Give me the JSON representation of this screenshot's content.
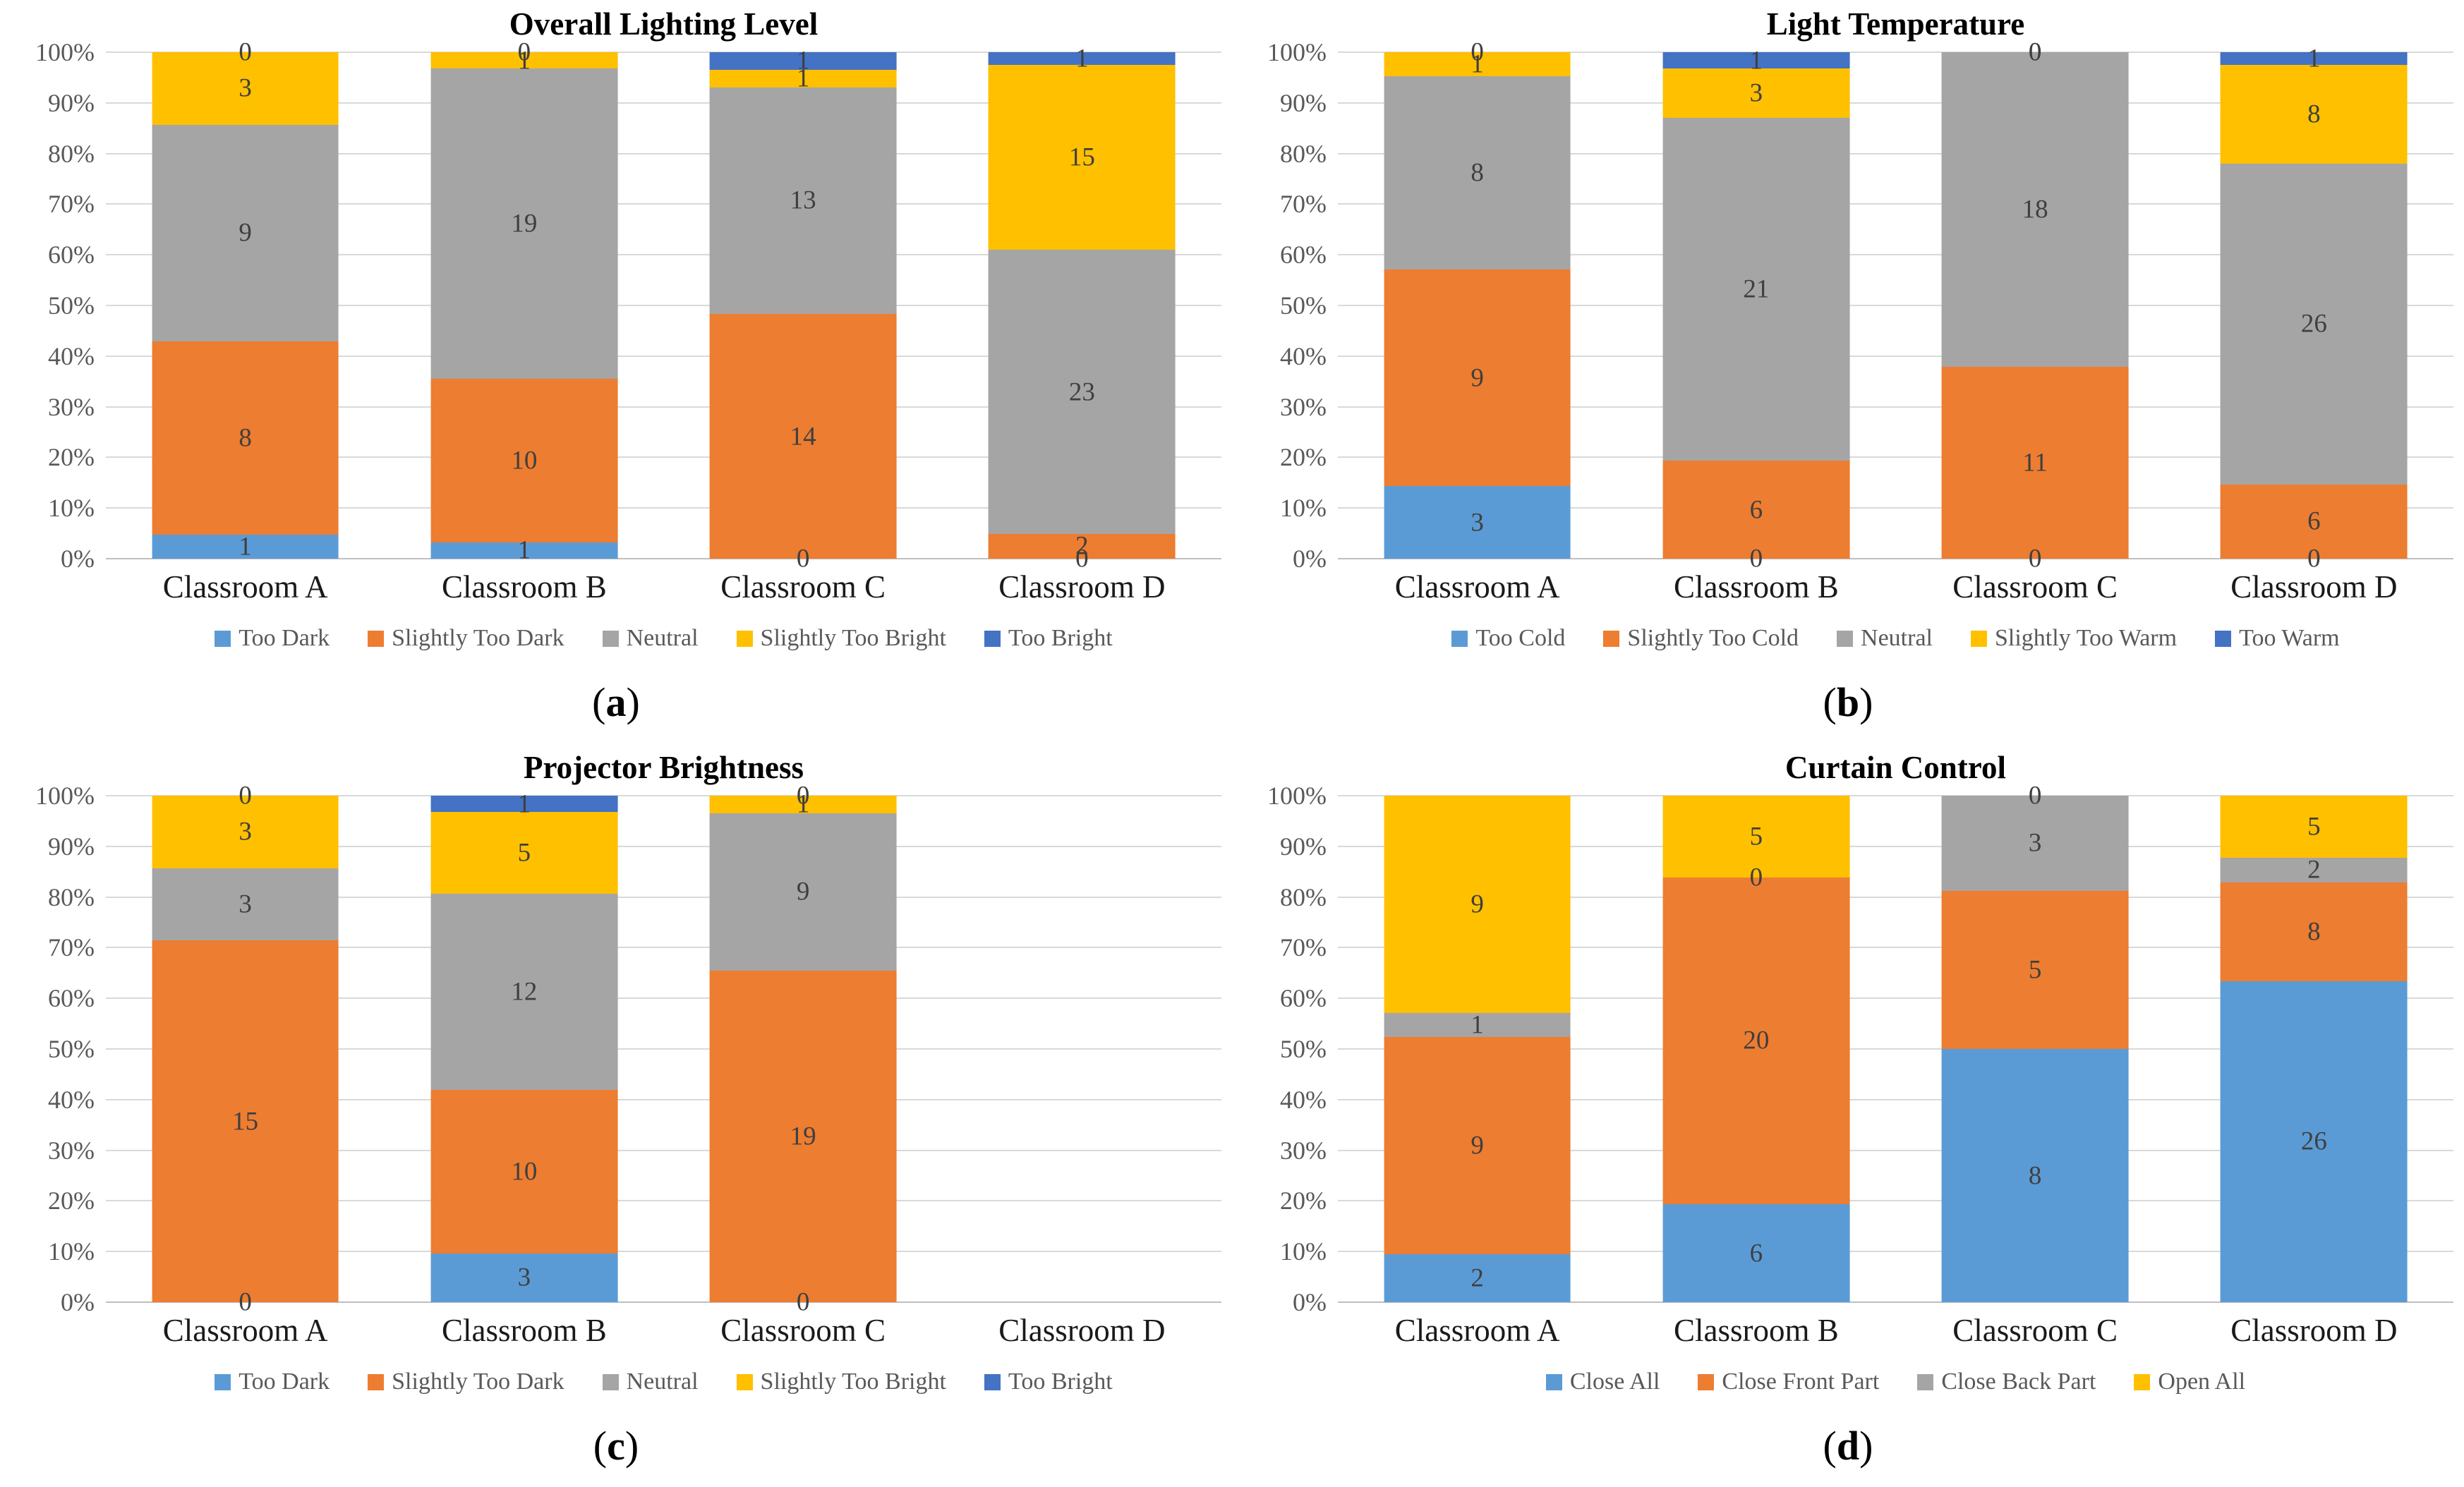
{
  "page_background": "#FFFFFF",
  "palette": {
    "series_blue": "#5B9BD5",
    "series_orange": "#ED7D31",
    "series_gray": "#A5A5A5",
    "series_yellow": "#FFC000",
    "series_darkblue": "#4472C4",
    "gridline": "#D9D9D9",
    "axis_line": "#BFBFBF",
    "tick_text": "#595959",
    "data_label_text": "#3F3F3F"
  },
  "chart_data": [
    {
      "type": "bar",
      "subtype": "stacked-100-percent",
      "title": "Overall Lighting Level",
      "panel_letter": "(a)",
      "categories": [
        "Classroom A",
        "Classroom B",
        "Classroom C",
        "Classroom D"
      ],
      "series": [
        {
          "name": "Too Dark",
          "color": "#5B9BD5",
          "values": [
            1,
            1,
            0,
            0
          ]
        },
        {
          "name": "Slightly Too Dark",
          "color": "#ED7D31",
          "values": [
            8,
            10,
            14,
            2
          ]
        },
        {
          "name": "Neutral",
          "color": "#A5A5A5",
          "values": [
            9,
            19,
            13,
            23
          ]
        },
        {
          "name": "Slightly Too Bright",
          "color": "#FFC000",
          "values": [
            3,
            1,
            1,
            15
          ]
        },
        {
          "name": "Too Bright",
          "color": "#4472C4",
          "values": [
            0,
            0,
            1,
            1
          ]
        }
      ],
      "y_ticks": [
        "100%",
        "90%",
        "80%",
        "70%",
        "60%",
        "50%",
        "40%",
        "30%",
        "20%",
        "10%",
        "0%"
      ],
      "ylim": [
        "0%",
        "100%"
      ],
      "grid": true,
      "legend_position": "bottom"
    },
    {
      "type": "bar",
      "subtype": "stacked-100-percent",
      "title": "Light Temperature",
      "panel_letter": "(b)",
      "categories": [
        "Classroom A",
        "Classroom B",
        "Classroom C",
        "Classroom D"
      ],
      "series": [
        {
          "name": "Too Cold",
          "color": "#5B9BD5",
          "values": [
            3,
            0,
            0,
            0
          ]
        },
        {
          "name": "Slightly Too Cold",
          "color": "#ED7D31",
          "values": [
            9,
            6,
            11,
            6
          ]
        },
        {
          "name": "Neutral",
          "color": "#A5A5A5",
          "values": [
            8,
            21,
            18,
            26
          ]
        },
        {
          "name": "Slightly Too Warm",
          "color": "#FFC000",
          "values": [
            1,
            3,
            0,
            8
          ]
        },
        {
          "name": "Too Warm",
          "color": "#4472C4",
          "values": [
            0,
            1,
            0,
            1
          ]
        }
      ],
      "y_ticks": [
        "100%",
        "90%",
        "80%",
        "70%",
        "60%",
        "50%",
        "40%",
        "30%",
        "20%",
        "10%",
        "0%"
      ],
      "ylim": [
        "0%",
        "100%"
      ],
      "grid": true,
      "legend_position": "bottom"
    },
    {
      "type": "bar",
      "subtype": "stacked-100-percent",
      "title": "Projector Brightness",
      "panel_letter": "(c)",
      "categories": [
        "Classroom A",
        "Classroom B",
        "Classroom C",
        "Classroom D"
      ],
      "series": [
        {
          "name": "Too Dark",
          "color": "#5B9BD5",
          "values": [
            0,
            3,
            0,
            0
          ]
        },
        {
          "name": "Slightly Too Dark",
          "color": "#ED7D31",
          "values": [
            15,
            10,
            19,
            0
          ]
        },
        {
          "name": "Neutral",
          "color": "#A5A5A5",
          "values": [
            3,
            12,
            9,
            0
          ]
        },
        {
          "name": "Slightly Too Bright",
          "color": "#FFC000",
          "values": [
            3,
            5,
            1,
            0
          ]
        },
        {
          "name": "Too Bright",
          "color": "#4472C4",
          "values": [
            0,
            1,
            0,
            0
          ]
        }
      ],
      "y_ticks": [
        "100%",
        "90%",
        "80%",
        "70%",
        "60%",
        "50%",
        "40%",
        "30%",
        "20%",
        "10%",
        "0%"
      ],
      "ylim": [
        "0%",
        "100%"
      ],
      "grid": true,
      "legend_position": "bottom",
      "note_empty_categories": [
        "Classroom D"
      ]
    },
    {
      "type": "bar",
      "subtype": "stacked-100-percent",
      "title": "Curtain Control",
      "panel_letter": "(d)",
      "categories": [
        "Classroom A",
        "Classroom B",
        "Classroom C",
        "Classroom D"
      ],
      "series": [
        {
          "name": "Close All",
          "color": "#5B9BD5",
          "values": [
            2,
            6,
            8,
            26
          ]
        },
        {
          "name": "Close Front Part",
          "color": "#ED7D31",
          "values": [
            9,
            20,
            5,
            8
          ]
        },
        {
          "name": "Close Back Part",
          "color": "#A5A5A5",
          "values": [
            1,
            0,
            3,
            2
          ]
        },
        {
          "name": "Open All",
          "color": "#FFC000",
          "values": [
            9,
            5,
            0,
            5
          ]
        }
      ],
      "y_ticks": [
        "100%",
        "90%",
        "80%",
        "70%",
        "60%",
        "50%",
        "40%",
        "30%",
        "20%",
        "10%",
        "0%"
      ],
      "ylim": [
        "0%",
        "100%"
      ],
      "grid": true,
      "legend_position": "bottom"
    }
  ]
}
